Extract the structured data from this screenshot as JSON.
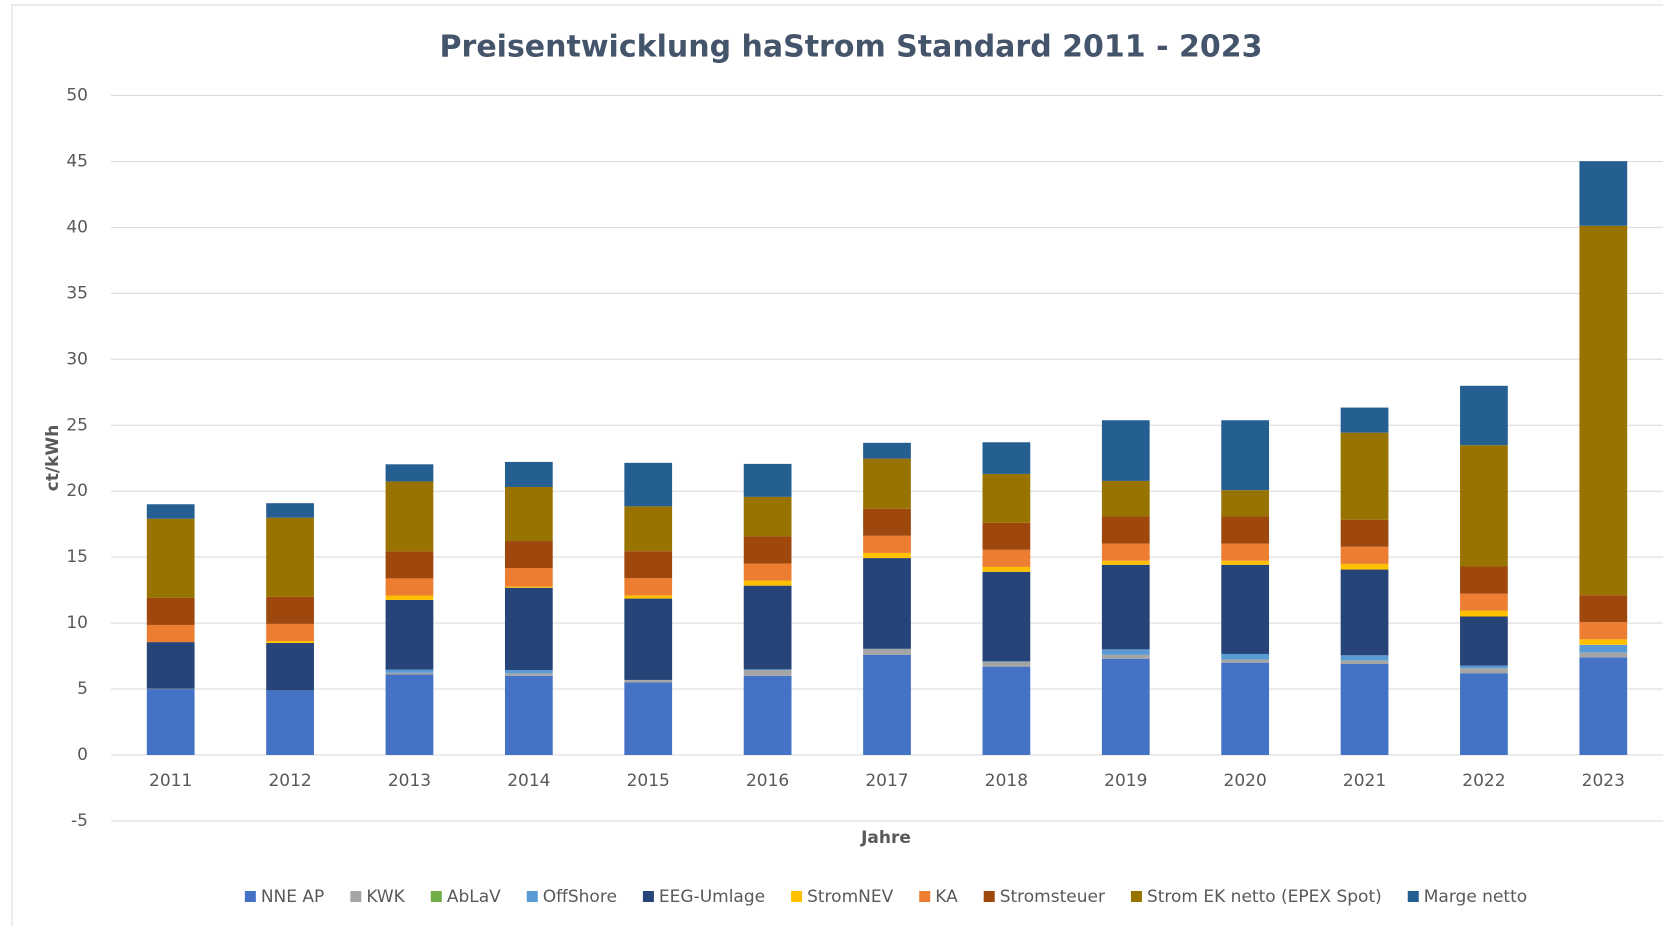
{
  "chart_data": {
    "type": "stacked_bar",
    "title": "Preisentwicklung haStrom Standard 2011 - 2023",
    "x_label": "Jahre",
    "y_label": "ct/kWh",
    "categories": [
      "2011",
      "2012",
      "2013",
      "2014",
      "2015",
      "2016",
      "2017",
      "2018",
      "2019",
      "2020",
      "2021",
      "2022",
      "2023"
    ],
    "ylim": [
      -5,
      50
    ],
    "yticks": [
      -5,
      0,
      5,
      10,
      15,
      20,
      25,
      30,
      35,
      40,
      45,
      50
    ],
    "grid": true,
    "legend": "bottom",
    "series": [
      {
        "name": "NNE AP",
        "color": "#4472c4",
        "values": [
          5.0,
          4.9,
          6.1,
          6.0,
          5.5,
          6.0,
          7.6,
          6.7,
          7.3,
          7.0,
          6.9,
          6.2,
          7.4
        ]
      },
      {
        "name": "KWK",
        "color": "#a5a5a5",
        "values": [
          0.03,
          0.0,
          0.13,
          0.18,
          0.18,
          0.45,
          0.44,
          0.35,
          0.28,
          0.23,
          0.25,
          0.38,
          0.36
        ]
      },
      {
        "name": "AbLaV",
        "color": "#70ad47",
        "values": [
          0,
          0,
          0,
          0.01,
          0.01,
          0,
          0.01,
          0.01,
          0.01,
          0.01,
          0.01,
          0,
          0
        ]
      },
      {
        "name": "OffShore",
        "color": "#5b9bd5",
        "values": [
          0,
          0,
          0.25,
          0.25,
          0,
          0.04,
          0,
          0.04,
          0.42,
          0.42,
          0.4,
          0.2,
          0.59
        ]
      },
      {
        "name": "EEG-Umlage",
        "color": "#264478",
        "values": [
          3.53,
          3.59,
          5.28,
          6.24,
          6.17,
          6.35,
          6.88,
          6.79,
          6.41,
          6.76,
          6.5,
          3.72,
          0
        ]
      },
      {
        "name": "StromNEV",
        "color": "#ffc000",
        "values": [
          0,
          0.15,
          0.33,
          0.09,
          0.24,
          0.38,
          0.39,
          0.37,
          0.31,
          0.31,
          0.43,
          0.44,
          0.42
        ]
      },
      {
        "name": "KA",
        "color": "#ed7d31",
        "values": [
          1.3,
          1.3,
          1.3,
          1.4,
          1.3,
          1.3,
          1.3,
          1.3,
          1.3,
          1.3,
          1.3,
          1.3,
          1.3
        ]
      },
      {
        "name": "Stromsteuer",
        "color": "#9e480e",
        "values": [
          2.05,
          2.05,
          2.05,
          2.05,
          2.05,
          2.05,
          2.05,
          2.05,
          2.05,
          2.05,
          2.05,
          2.05,
          2.05
        ]
      },
      {
        "name": "Strom EK netto (EPEX Spot)",
        "color": "#997300",
        "values": [
          6.0,
          6.0,
          5.3,
          4.1,
          3.4,
          3.0,
          3.8,
          3.7,
          2.7,
          2.0,
          6.6,
          9.2,
          28.0
        ]
      },
      {
        "name": "Marge netto",
        "color": "#255e91",
        "values": [
          1.1,
          1.1,
          1.3,
          1.9,
          3.3,
          2.5,
          1.2,
          2.4,
          4.6,
          5.3,
          1.9,
          4.5,
          4.9
        ]
      }
    ]
  }
}
